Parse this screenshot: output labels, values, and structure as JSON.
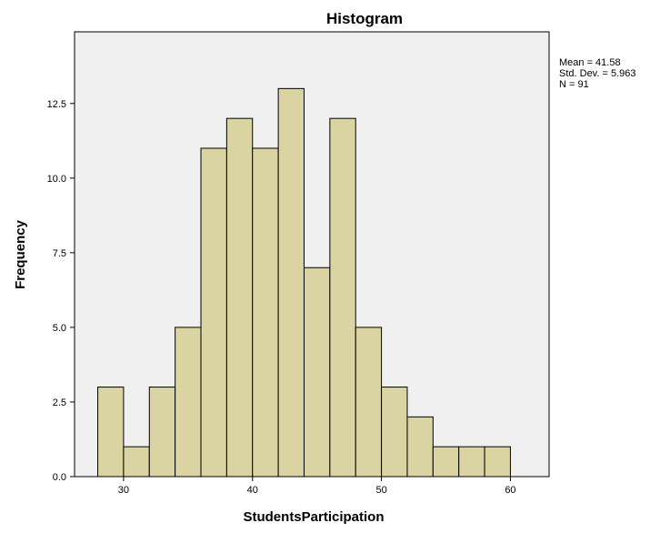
{
  "chart_data": {
    "type": "bar",
    "title": "Histogram",
    "xlabel": "StudentsParticipation",
    "ylabel": "Frequency",
    "bin_width": 2,
    "bins": [
      {
        "x0": 28,
        "x1": 30,
        "count": 3
      },
      {
        "x0": 30,
        "x1": 32,
        "count": 1
      },
      {
        "x0": 32,
        "x1": 34,
        "count": 3
      },
      {
        "x0": 34,
        "x1": 36,
        "count": 5
      },
      {
        "x0": 36,
        "x1": 38,
        "count": 11
      },
      {
        "x0": 38,
        "x1": 40,
        "count": 12
      },
      {
        "x0": 40,
        "x1": 42,
        "count": 11
      },
      {
        "x0": 42,
        "x1": 44,
        "count": 13
      },
      {
        "x0": 44,
        "x1": 46,
        "count": 7
      },
      {
        "x0": 46,
        "x1": 48,
        "count": 12
      },
      {
        "x0": 48,
        "x1": 50,
        "count": 5
      },
      {
        "x0": 50,
        "x1": 52,
        "count": 3
      },
      {
        "x0": 52,
        "x1": 54,
        "count": 2
      },
      {
        "x0": 54,
        "x1": 56,
        "count": 1
      },
      {
        "x0": 56,
        "x1": 58,
        "count": 1
      },
      {
        "x0": 58,
        "x1": 60,
        "count": 1
      }
    ],
    "xlim": [
      26.2,
      63.0
    ],
    "ylim": [
      0,
      14.9
    ],
    "xticks": [
      30,
      40,
      50,
      60
    ],
    "xtick_labels": [
      "30",
      "40",
      "50",
      "60"
    ],
    "yticks": [
      0,
      2.5,
      5,
      7.5,
      10,
      12.5
    ],
    "ytick_labels": [
      "0.0",
      "2.5",
      "5.0",
      "7.5",
      "10.0",
      "12.5"
    ],
    "grid": false,
    "stats": [
      "Mean = 41.58",
      "Std. Dev. = 5.963",
      "N = 91"
    ],
    "colors": {
      "bar_fill": "#d9d4a2",
      "bar_stroke": "#000000",
      "plot_background": "#f0f0f0",
      "page_background": "#ffffff"
    }
  }
}
